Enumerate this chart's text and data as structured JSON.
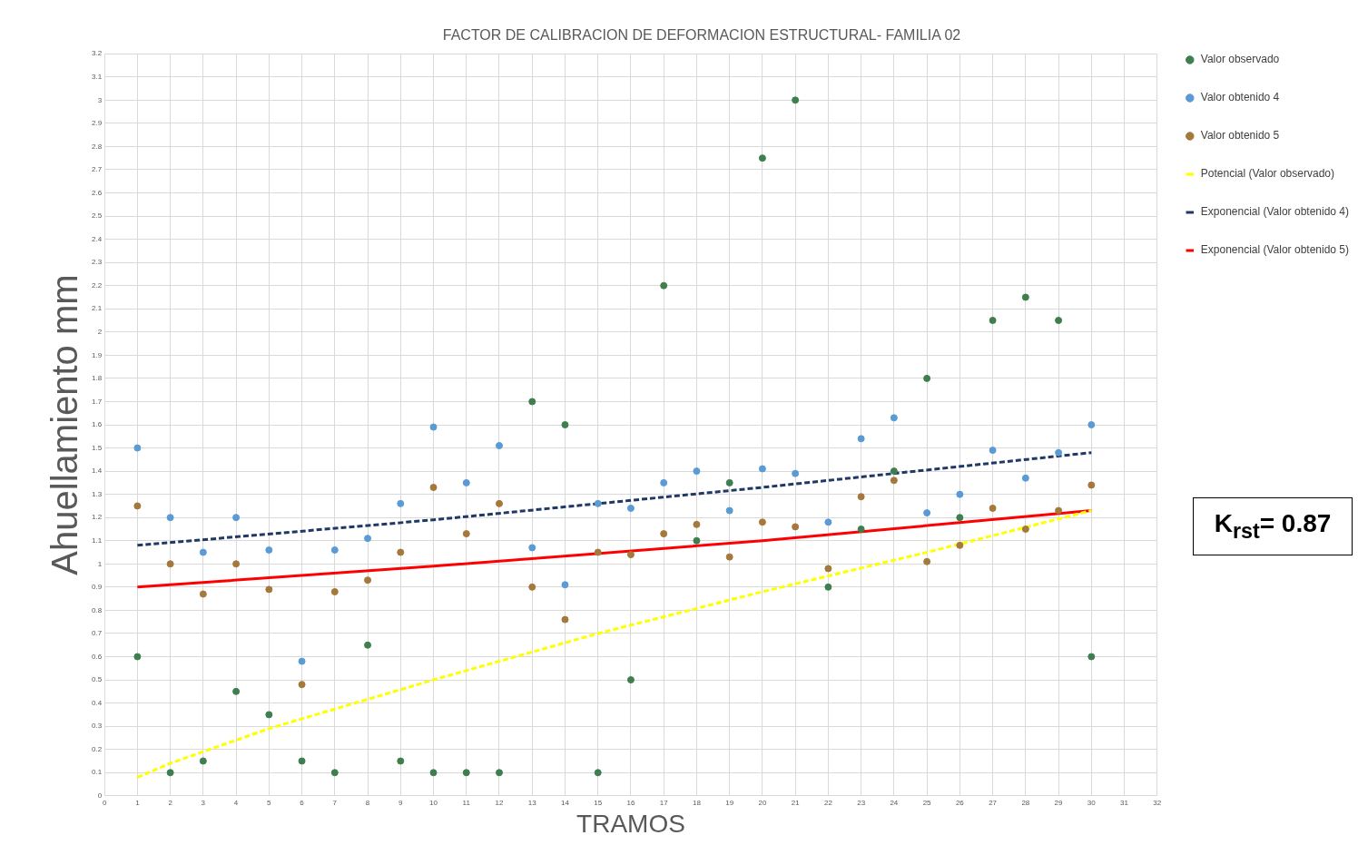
{
  "chart_data": {
    "type": "scatter",
    "title": "FACTOR DE CALIBRACION DE DEFORMACION ESTRUCTURAL- FAMILIA 02",
    "xlabel": "TRAMOS",
    "ylabel": "Ahuellamiento mm",
    "x": [
      1,
      2,
      3,
      4,
      5,
      6,
      7,
      8,
      9,
      10,
      11,
      12,
      13,
      14,
      15,
      16,
      17,
      18,
      19,
      20,
      21,
      22,
      23,
      24,
      25,
      26,
      27,
      28,
      29,
      30
    ],
    "series": [
      {
        "name": "Valor observado",
        "color": "#3f7f4f",
        "values": [
          0.6,
          0.1,
          0.15,
          0.45,
          0.35,
          0.15,
          0.1,
          0.65,
          0.15,
          0.1,
          0.1,
          0.1,
          1.7,
          1.6,
          0.1,
          0.5,
          2.2,
          1.1,
          1.35,
          2.75,
          3.0,
          0.9,
          1.15,
          1.4,
          1.8,
          1.2,
          2.05,
          2.15,
          2.05,
          0.6
        ]
      },
      {
        "name": "Valor obtenido 4",
        "color": "#5b9bd5",
        "values": [
          1.5,
          1.2,
          1.05,
          1.2,
          1.06,
          0.58,
          1.06,
          1.11,
          1.26,
          1.59,
          1.35,
          1.51,
          1.07,
          0.91,
          1.26,
          1.24,
          1.35,
          1.4,
          1.23,
          1.41,
          1.39,
          1.18,
          1.54,
          1.63,
          1.22,
          1.3,
          1.49,
          1.37,
          1.48,
          1.6
        ]
      },
      {
        "name": "Valor obtenido 5",
        "color": "#a5783c",
        "values": [
          1.25,
          1.0,
          0.87,
          1.0,
          0.89,
          0.48,
          0.88,
          0.93,
          1.05,
          1.33,
          1.13,
          1.26,
          0.9,
          0.76,
          1.05,
          1.04,
          1.13,
          1.17,
          1.03,
          1.18,
          1.16,
          0.98,
          1.29,
          1.36,
          1.01,
          1.08,
          1.24,
          1.15,
          1.23,
          1.34
        ]
      },
      {
        "name": "Potencial (Valor observado)",
        "type": "line",
        "marker": "none",
        "line_style": "dashed",
        "color": "#ffff00",
        "x": [
          1,
          2,
          5,
          10,
          15,
          20,
          25,
          30
        ],
        "values": [
          0.08,
          0.14,
          0.29,
          0.5,
          0.7,
          0.88,
          1.05,
          1.23
        ]
      },
      {
        "name": "Exponencial (Valor obtenido 4)",
        "type": "line",
        "marker": "none",
        "line_style": "dashed",
        "color": "#1f3864",
        "x": [
          1,
          10,
          20,
          30
        ],
        "values": [
          1.08,
          1.19,
          1.33,
          1.48
        ]
      },
      {
        "name": "Exponencial (Valor obtenido 5)",
        "type": "line",
        "marker": "none",
        "line_style": "solid",
        "color": "#ff0000",
        "x": [
          1,
          10,
          20,
          30
        ],
        "values": [
          0.9,
          0.99,
          1.1,
          1.23
        ]
      }
    ],
    "xlim": [
      0,
      32
    ],
    "xticks": [
      0,
      1,
      2,
      3,
      4,
      5,
      6,
      7,
      8,
      9,
      10,
      11,
      12,
      13,
      14,
      15,
      16,
      17,
      18,
      19,
      20,
      21,
      22,
      23,
      24,
      25,
      26,
      27,
      28,
      29,
      30,
      31,
      32
    ],
    "ylim": [
      0,
      3.2
    ],
    "yticks": [
      0,
      0.1,
      0.2,
      0.3,
      0.4,
      0.5,
      0.6,
      0.7,
      0.8,
      0.9,
      1,
      1.1,
      1.2,
      1.3,
      1.4,
      1.5,
      1.6,
      1.7,
      1.8,
      1.9,
      2,
      2.1,
      2.2,
      2.3,
      2.4,
      2.5,
      2.6,
      2.7,
      2.8,
      2.9,
      3,
      3.1,
      3.2
    ],
    "grid": true,
    "legend": "right",
    "marker": "circle",
    "annotations": [
      "K$_{rst}$= 0.87"
    ]
  }
}
